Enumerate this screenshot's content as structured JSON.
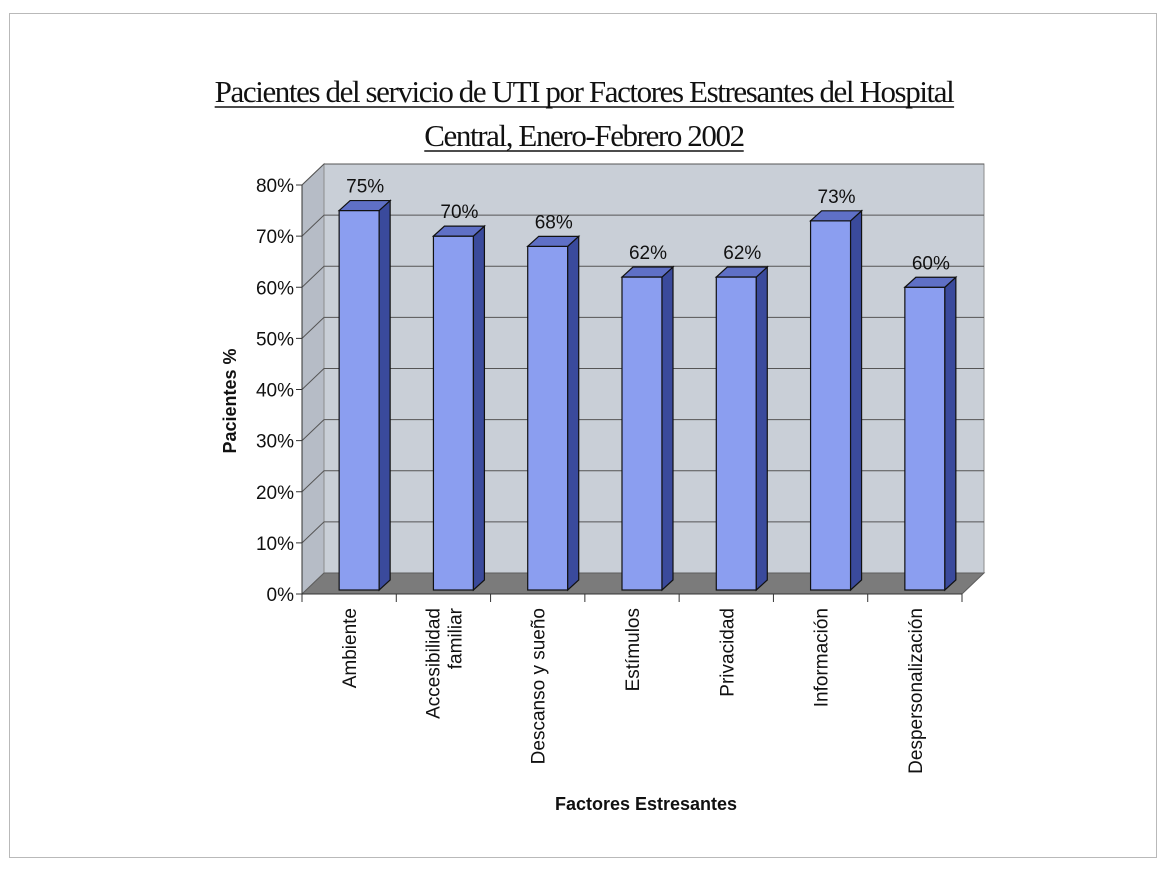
{
  "chart_data": {
    "type": "bar",
    "title": "Pacientes del servicio de UTI por Factores Estresantes del Hospital Central, Enero-Febrero 2002",
    "title_lines": [
      "Pacientes del servicio de UTI por Factores Estresantes del Hospital",
      "Central, Enero-Febrero 2002"
    ],
    "xlabel": "Factores Estresantes",
    "ylabel": "Pacientes %",
    "ylim": [
      0,
      80
    ],
    "yticks": [
      "0%",
      "10%",
      "20%",
      "30%",
      "40%",
      "50%",
      "60%",
      "70%",
      "80%"
    ],
    "categories": [
      [
        "Ambiente"
      ],
      [
        "Accesibilidad",
        "familiar"
      ],
      [
        "Descanso y sueño"
      ],
      [
        "Estímulos"
      ],
      [
        "Privacidad"
      ],
      [
        "Información"
      ],
      [
        "Despersonalización"
      ]
    ],
    "values": [
      75,
      70,
      68,
      62,
      62,
      73,
      60
    ],
    "value_labels": [
      "75%",
      "70%",
      "68%",
      "62%",
      "62%",
      "73%",
      "60%"
    ],
    "grid": true,
    "style": "3d-column",
    "colors": {
      "bar_front": "#8b9ef0",
      "bar_side": "#3a4a9c",
      "bar_top": "#5f70c6",
      "wall": "#c9cfd7",
      "floor": "#7b7b7b"
    }
  }
}
